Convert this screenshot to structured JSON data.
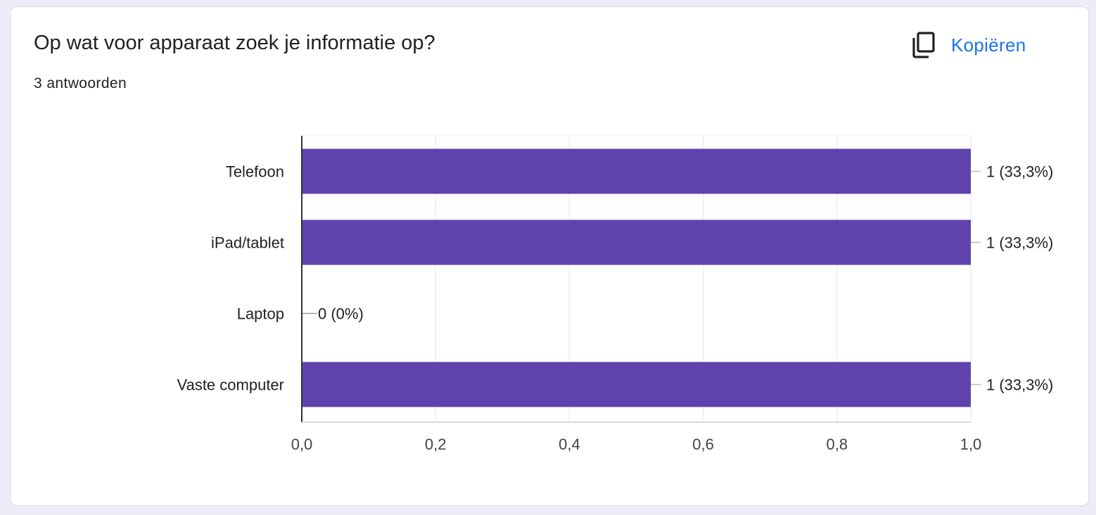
{
  "question": {
    "title": "Op wat voor apparaat zoek je informatie op?",
    "response_count": "3 antwoorden"
  },
  "toolbar": {
    "copy_label": "Kopiëren",
    "copy_icon": "copy-icon"
  },
  "colors": {
    "bar": "#5e43ad",
    "accent": "#1a73e8",
    "page_background": "#f0ebf8"
  },
  "chart_data": {
    "type": "bar",
    "orientation": "horizontal",
    "categories": [
      "Telefoon",
      "iPad/tablet",
      "Laptop",
      "Vaste computer"
    ],
    "values": [
      1,
      1,
      0,
      1
    ],
    "value_labels": [
      "1 (33,3%)",
      "1 (33,3%)",
      "0 (0%)",
      "1 (33,3%)"
    ],
    "xlim": [
      0,
      1.0
    ],
    "x_ticks": [
      0,
      0.2,
      0.4,
      0.6,
      0.8,
      1.0
    ],
    "x_tick_labels": [
      "0,0",
      "0,2",
      "0,4",
      "0,6",
      "0,8",
      "1,0"
    ],
    "grid": true,
    "legend": "none"
  }
}
